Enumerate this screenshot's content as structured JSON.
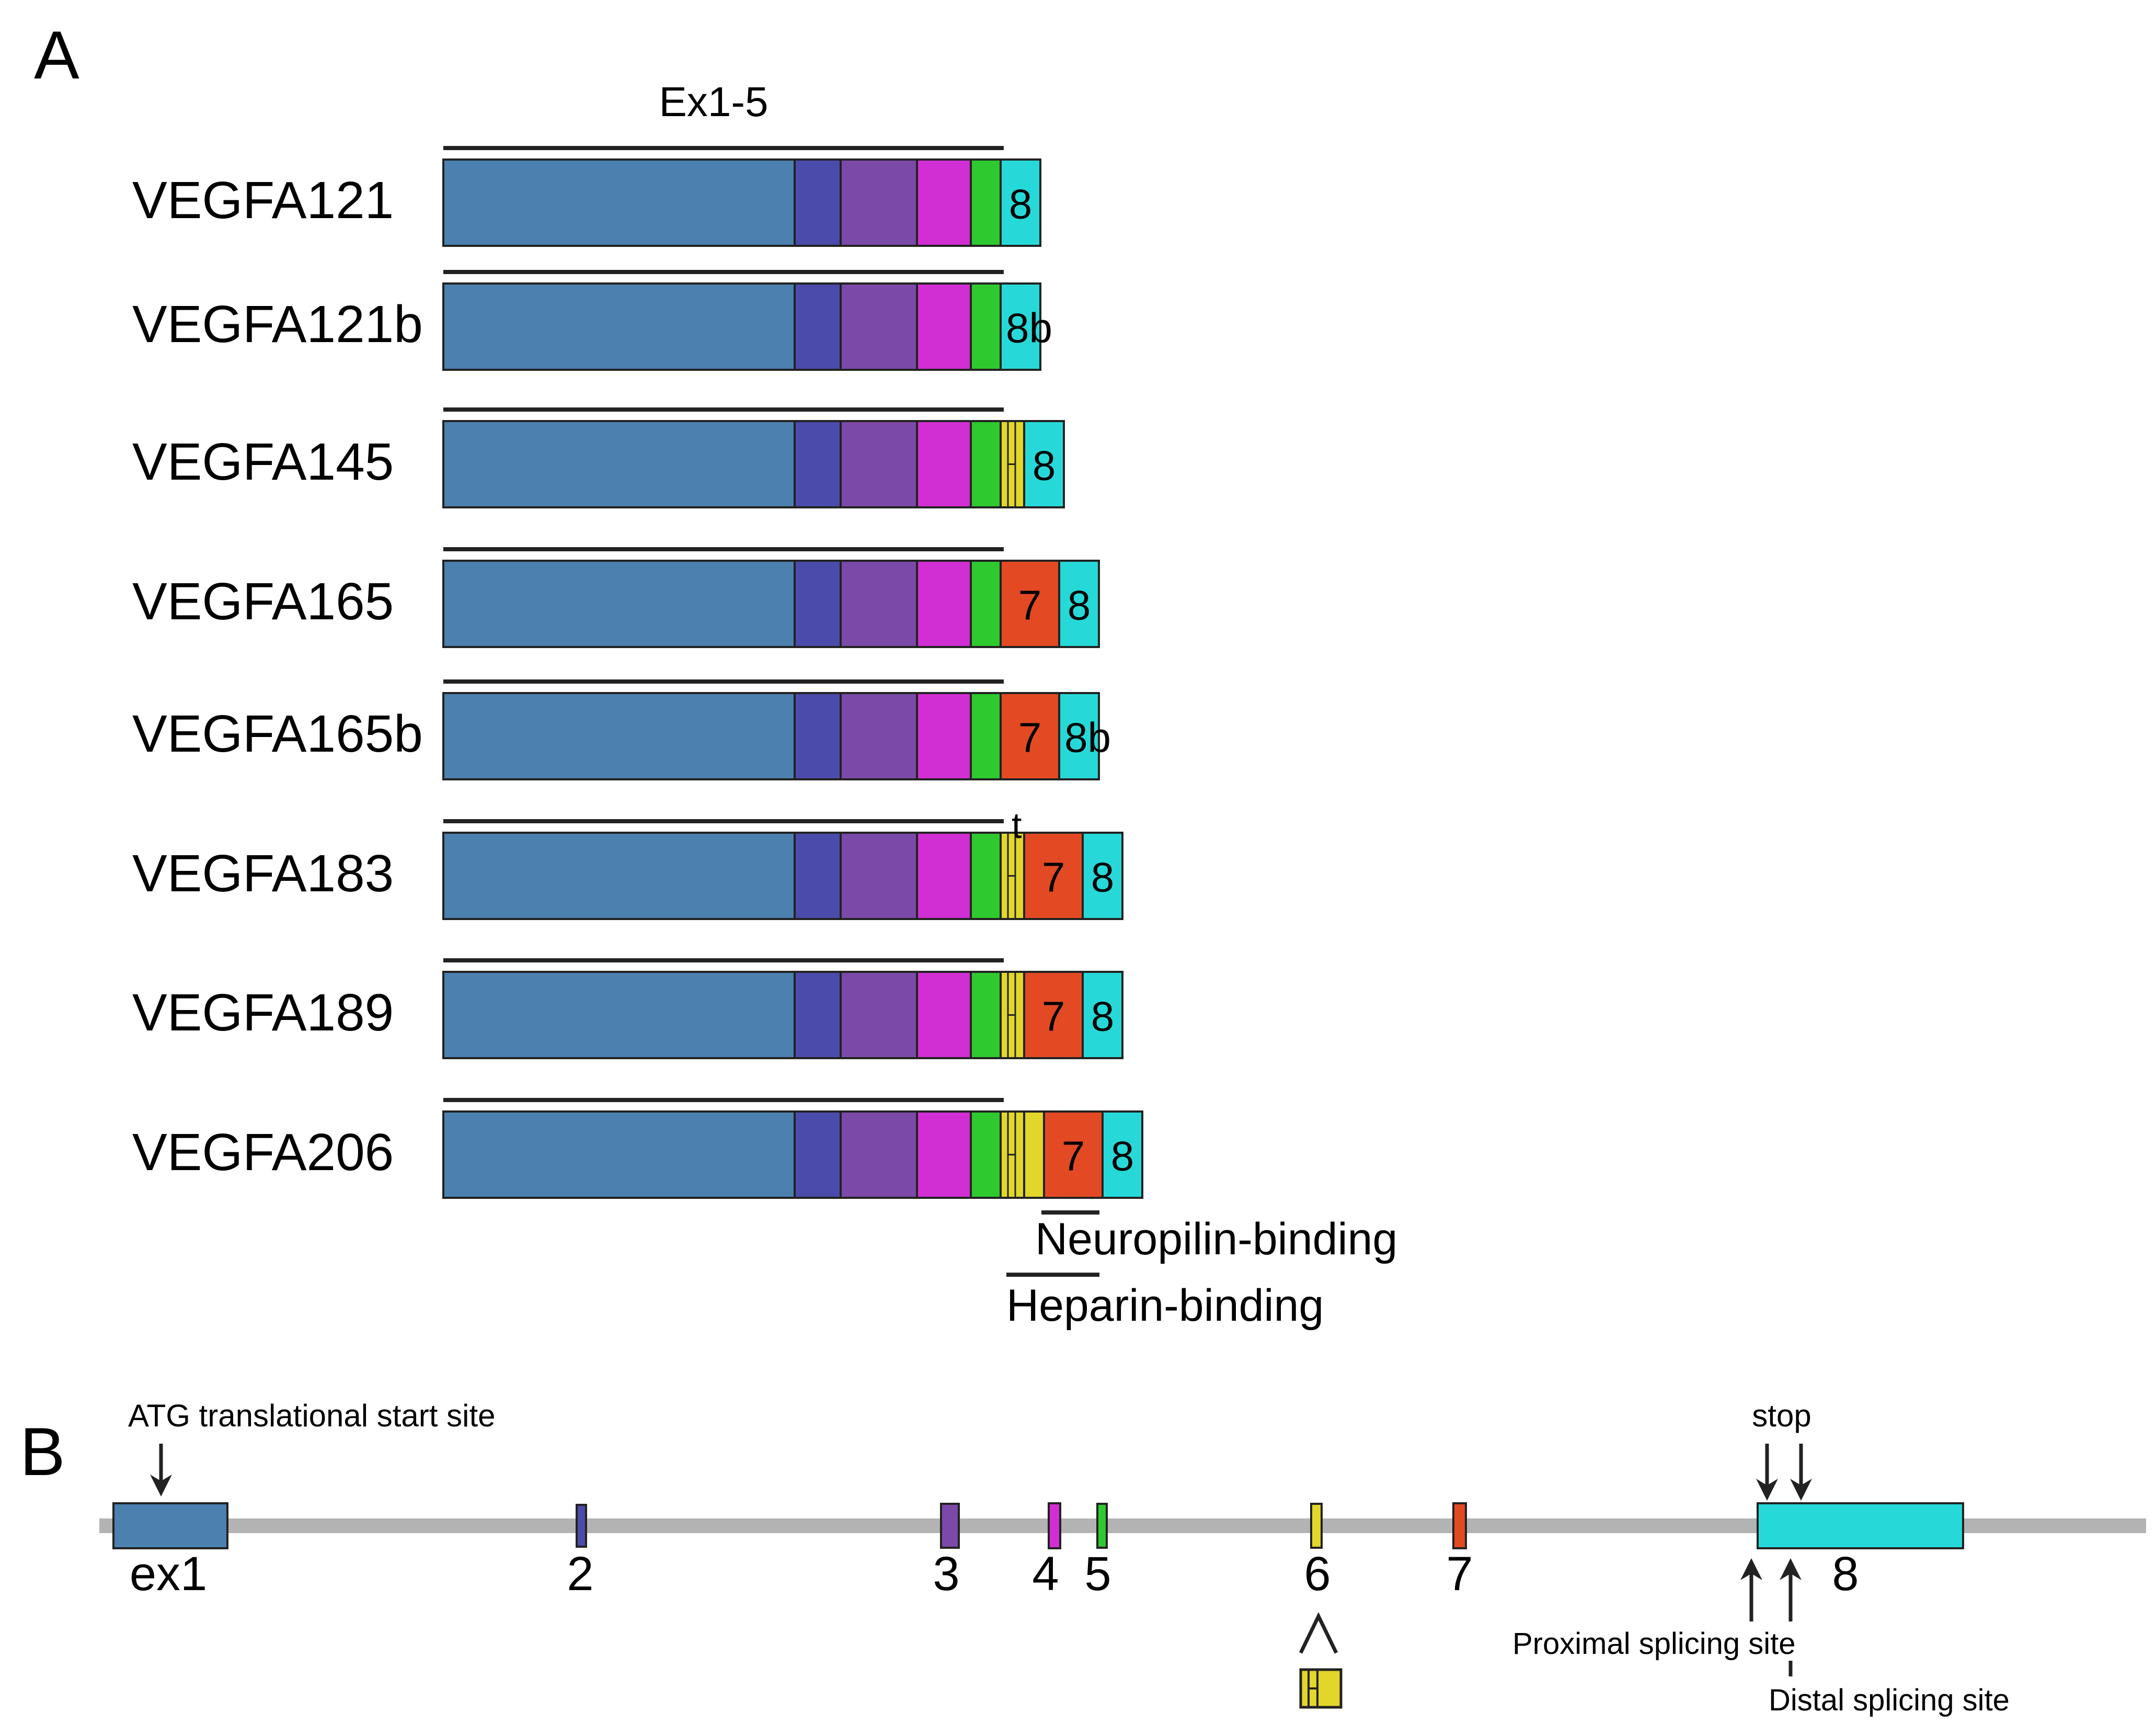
{
  "panel_a": {
    "panel_label": "A",
    "exon_span_label": "Ex1-5",
    "colors": {
      "ex1_5_body": "#4b80af",
      "ex2": "#4b4bab",
      "ex3": "#7b4aa8",
      "ex4": "#d12fd4",
      "ex5": "#2ec92e",
      "ex6": "#e2d62a",
      "ex7": "#e34a24",
      "ex8": "#26d9d8",
      "outline": "#222222"
    },
    "isoforms": [
      {
        "name": "VEGFA121",
        "segments": [
          {
            "exon": "8",
            "label": "8"
          }
        ]
      },
      {
        "name": "VEGFA121b",
        "segments": [
          {
            "exon": "8",
            "label": "8b"
          }
        ]
      },
      {
        "name": "VEGFA145",
        "segments": [
          {
            "exon": "6a",
            "label": ""
          },
          {
            "exon": "8",
            "label": "8"
          }
        ]
      },
      {
        "name": "VEGFA165",
        "segments": [
          {
            "exon": "7",
            "label": "7"
          },
          {
            "exon": "8",
            "label": "8"
          }
        ]
      },
      {
        "name": "VEGFA165b",
        "segments": [
          {
            "exon": "7",
            "label": "7"
          },
          {
            "exon": "8",
            "label": "8b"
          }
        ]
      },
      {
        "name": "VEGFA183",
        "segments": [
          {
            "exon": "6a",
            "label": ""
          },
          {
            "exon": "7",
            "label": "7"
          },
          {
            "exon": "8",
            "label": "8"
          }
        ],
        "annotation": "t"
      },
      {
        "name": "VEGFA189",
        "segments": [
          {
            "exon": "6a",
            "label": ""
          },
          {
            "exon": "7",
            "label": "7"
          },
          {
            "exon": "8",
            "label": "8"
          }
        ]
      },
      {
        "name": "VEGFA206",
        "segments": [
          {
            "exon": "6a",
            "label": ""
          },
          {
            "exon": "6b",
            "label": ""
          },
          {
            "exon": "7",
            "label": "7"
          },
          {
            "exon": "8",
            "label": "8"
          }
        ]
      }
    ],
    "region_labels": {
      "neuropilin": "Neuropilin-binding",
      "heparin": "Heparin-binding"
    }
  },
  "panel_b": {
    "panel_label": "B",
    "exons": [
      {
        "label": "ex1",
        "color": "#4b80af"
      },
      {
        "label": "2",
        "color": "#4b4bab"
      },
      {
        "label": "3",
        "color": "#7b4aa8"
      },
      {
        "label": "4",
        "color": "#d12fd4"
      },
      {
        "label": "5",
        "color": "#2ec92e"
      },
      {
        "label": "6",
        "color": "#e2d62a"
      },
      {
        "label": "7",
        "color": "#e34a24"
      },
      {
        "label": "8",
        "color": "#26d9d8"
      }
    ],
    "annotations": {
      "start_site": "ATG translational start site",
      "stop": "stop",
      "proximal": "Proximal splicing site",
      "distal": "Distal splicing site"
    },
    "gene_line_color": "#b3b3b3"
  }
}
